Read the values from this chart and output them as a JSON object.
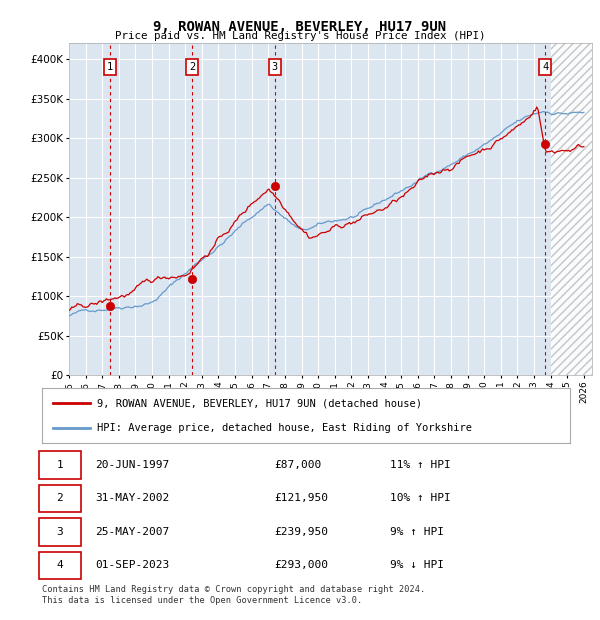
{
  "title": "9, ROWAN AVENUE, BEVERLEY, HU17 9UN",
  "subtitle": "Price paid vs. HM Land Registry's House Price Index (HPI)",
  "red_label": "9, ROWAN AVENUE, BEVERLEY, HU17 9UN (detached house)",
  "blue_label": "HPI: Average price, detached house, East Riding of Yorkshire",
  "footer_line1": "Contains HM Land Registry data © Crown copyright and database right 2024.",
  "footer_line2": "This data is licensed under the Open Government Licence v3.0.",
  "transactions": [
    {
      "num": 1,
      "date": "20-JUN-1997",
      "price": 87000,
      "pct": "11%",
      "dir": "↑"
    },
    {
      "num": 2,
      "date": "31-MAY-2002",
      "price": 121950,
      "pct": "10%",
      "dir": "↑"
    },
    {
      "num": 3,
      "date": "25-MAY-2007",
      "price": 239950,
      "pct": "9%",
      "dir": "↑"
    },
    {
      "num": 4,
      "date": "01-SEP-2023",
      "price": 293000,
      "pct": "9%",
      "dir": "↓"
    }
  ],
  "transaction_years": [
    1997.47,
    2002.41,
    2007.39,
    2023.67
  ],
  "transaction_prices": [
    87000,
    121950,
    239950,
    293000
  ],
  "ylim": [
    0,
    420000
  ],
  "yticks": [
    0,
    50000,
    100000,
    150000,
    200000,
    250000,
    300000,
    350000,
    400000
  ],
  "ytick_labels": [
    "£0",
    "£50K",
    "£100K",
    "£150K",
    "£200K",
    "£250K",
    "£300K",
    "£350K",
    "£400K"
  ],
  "xlim_start": 1995.0,
  "xlim_end": 2026.5,
  "xticks": [
    1995,
    1996,
    1997,
    1998,
    1999,
    2000,
    2001,
    2002,
    2003,
    2004,
    2005,
    2006,
    2007,
    2008,
    2009,
    2010,
    2011,
    2012,
    2013,
    2014,
    2015,
    2016,
    2017,
    2018,
    2019,
    2020,
    2021,
    2022,
    2023,
    2024,
    2025,
    2026
  ],
  "bg_color": "#dce6f1",
  "grid_color": "#ffffff",
  "red_color": "#cc0000",
  "blue_color": "#6699cc",
  "hatch_start": 2024.0
}
